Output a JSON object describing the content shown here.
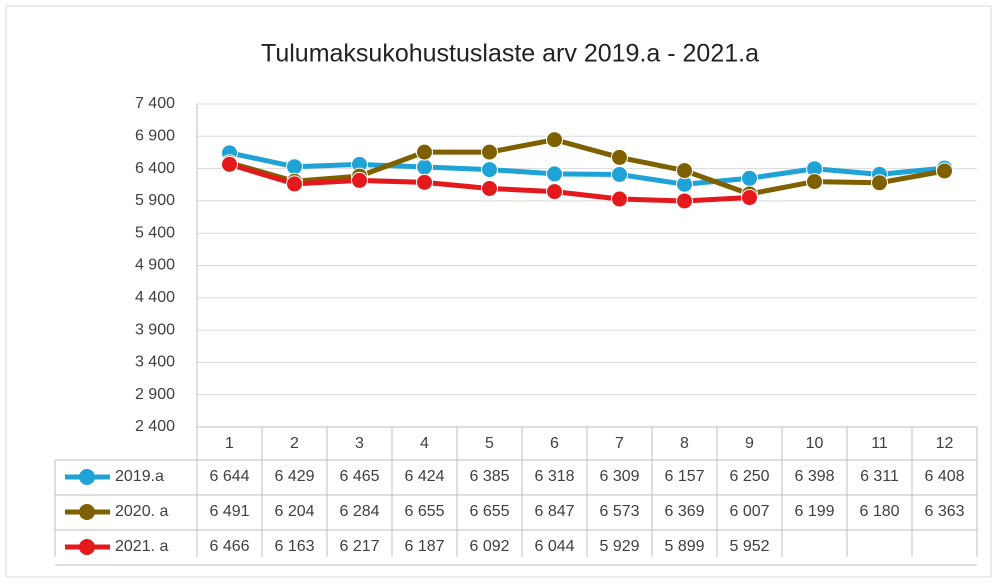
{
  "chart_data": {
    "type": "line",
    "title": "Tulumaksukohustuslaste arv 2019.a - 2021.a",
    "categories": [
      "1",
      "2",
      "3",
      "4",
      "5",
      "6",
      "7",
      "8",
      "9",
      "10",
      "11",
      "12"
    ],
    "ylim": [
      2400,
      7400
    ],
    "yticks": [
      {
        "value": 2400,
        "label": "2 400"
      },
      {
        "value": 2900,
        "label": "2 900"
      },
      {
        "value": 3400,
        "label": "3 400"
      },
      {
        "value": 3900,
        "label": "3 900"
      },
      {
        "value": 4400,
        "label": "4 400"
      },
      {
        "value": 4900,
        "label": "4 900"
      },
      {
        "value": 5400,
        "label": "5 400"
      },
      {
        "value": 5900,
        "label": "5 900"
      },
      {
        "value": 6400,
        "label": "6 400"
      },
      {
        "value": 6900,
        "label": "6 900"
      },
      {
        "value": 7400,
        "label": "7 400"
      }
    ],
    "grid": true,
    "series": [
      {
        "name": "2019.a",
        "color": "#1fa3d6",
        "values": [
          6644,
          6429,
          6465,
          6424,
          6385,
          6318,
          6309,
          6157,
          6250,
          6398,
          6311,
          6408
        ],
        "value_labels": [
          "6 644",
          "6 429",
          "6 465",
          "6 424",
          "6 385",
          "6 318",
          "6 309",
          "6 157",
          "6 250",
          "6 398",
          "6 311",
          "6 408"
        ]
      },
      {
        "name": "2020. a",
        "color": "#7f6000",
        "values": [
          6491,
          6204,
          6284,
          6655,
          6655,
          6847,
          6573,
          6369,
          6007,
          6199,
          6180,
          6363
        ],
        "value_labels": [
          "6 491",
          "6 204",
          "6 284",
          "6 655",
          "6 655",
          "6 847",
          "6 573",
          "6 369",
          "6 007",
          "6 199",
          "6 180",
          "6 363"
        ]
      },
      {
        "name": "2021. a",
        "color": "#e3191c",
        "values": [
          6466,
          6163,
          6217,
          6187,
          6092,
          6044,
          5929,
          5899,
          5952,
          null,
          null,
          null
        ],
        "value_labels": [
          "6 466",
          "6 163",
          "6 217",
          "6 187",
          "6 092",
          "6 044",
          "5 929",
          "5 899",
          "5 952",
          null,
          null,
          null
        ]
      }
    ]
  }
}
